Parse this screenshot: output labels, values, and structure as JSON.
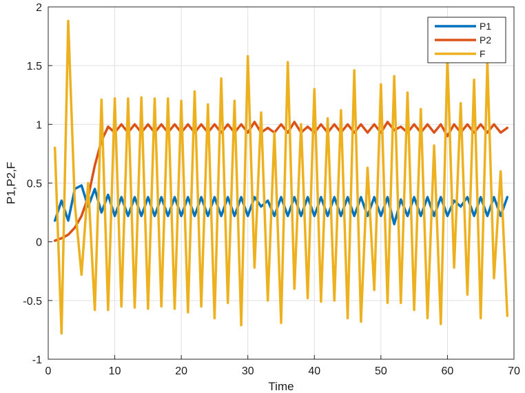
{
  "chart_data": {
    "type": "line",
    "xlabel": "Time",
    "ylabel": "P1,P2,F",
    "xlim": [
      0,
      70
    ],
    "ylim": [
      -1,
      2
    ],
    "xticks": [
      "0",
      "10",
      "20",
      "30",
      "40",
      "50",
      "60",
      "70"
    ],
    "yticks": [
      "-1",
      "-0.5",
      "0",
      "0.5",
      "1",
      "1.5",
      "2"
    ],
    "grid": true,
    "legend_position": "top-right",
    "x": [
      1,
      2,
      3,
      4,
      5,
      6,
      7,
      8,
      9,
      10,
      11,
      12,
      13,
      14,
      15,
      16,
      17,
      18,
      19,
      20,
      21,
      22,
      23,
      24,
      25,
      26,
      27,
      28,
      29,
      30,
      31,
      32,
      33,
      34,
      35,
      36,
      37,
      38,
      39,
      40,
      41,
      42,
      43,
      44,
      45,
      46,
      47,
      48,
      49,
      50,
      51,
      52,
      53,
      54,
      55,
      56,
      57,
      58,
      59,
      60,
      61,
      62,
      63,
      64,
      65,
      66,
      67,
      68,
      69
    ],
    "series": [
      {
        "name": "P1",
        "color": "#0072BD",
        "values": [
          0.18,
          0.35,
          0.18,
          0.45,
          0.48,
          0.3,
          0.45,
          0.25,
          0.4,
          0.22,
          0.38,
          0.22,
          0.38,
          0.22,
          0.38,
          0.22,
          0.38,
          0.22,
          0.38,
          0.22,
          0.38,
          0.22,
          0.38,
          0.22,
          0.38,
          0.22,
          0.38,
          0.22,
          0.38,
          0.22,
          0.38,
          0.3,
          0.35,
          0.22,
          0.38,
          0.22,
          0.38,
          0.22,
          0.38,
          0.22,
          0.38,
          0.22,
          0.38,
          0.22,
          0.38,
          0.22,
          0.38,
          0.22,
          0.38,
          0.22,
          0.38,
          0.15,
          0.36,
          0.22,
          0.38,
          0.22,
          0.38,
          0.22,
          0.38,
          0.22,
          0.35,
          0.3,
          0.38,
          0.22,
          0.38,
          0.22,
          0.38,
          0.22,
          0.38
        ]
      },
      {
        "name": "P2",
        "color": "#D95319",
        "values": [
          0.01,
          0.03,
          0.06,
          0.12,
          0.22,
          0.38,
          0.65,
          0.86,
          0.98,
          0.93,
          1.0,
          0.93,
          1.0,
          0.93,
          1.0,
          0.93,
          1.0,
          0.93,
          1.0,
          0.93,
          1.0,
          0.93,
          1.0,
          0.93,
          1.0,
          0.93,
          1.0,
          0.93,
          1.0,
          0.93,
          1.02,
          0.93,
          0.97,
          0.93,
          1.0,
          0.93,
          1.02,
          0.93,
          0.98,
          0.93,
          1.0,
          0.93,
          1.0,
          0.93,
          1.0,
          0.93,
          1.0,
          0.93,
          1.0,
          0.93,
          1.02,
          0.95,
          0.98,
          0.93,
          1.0,
          0.93,
          1.0,
          0.93,
          1.0,
          0.9,
          1.0,
          0.93,
          1.0,
          0.93,
          1.0,
          0.93,
          1.0,
          0.93,
          0.97
        ]
      },
      {
        "name": "F",
        "color": "#EDB120",
        "values": [
          0.8,
          -0.78,
          1.88,
          0.32,
          -0.28,
          0.5,
          -0.58,
          1.21,
          -0.58,
          1.22,
          -0.55,
          1.22,
          -0.56,
          1.23,
          -0.57,
          1.22,
          -0.55,
          1.22,
          -0.57,
          1.2,
          -0.6,
          1.28,
          -0.55,
          1.17,
          -0.65,
          1.39,
          -0.52,
          1.2,
          -0.71,
          1.58,
          -0.22,
          1.1,
          -0.5,
          0.93,
          -0.69,
          1.53,
          -0.4,
          1.0,
          -0.48,
          1.3,
          -0.51,
          1.05,
          -0.5,
          1.12,
          -0.65,
          1.46,
          -0.68,
          0.63,
          -0.41,
          1.34,
          -0.52,
          1.41,
          -0.52,
          1.27,
          -0.58,
          1.13,
          -0.65,
          0.82,
          -0.7,
          1.56,
          -0.22,
          1.18,
          -0.45,
          1.38,
          -0.65,
          1.53,
          -0.31,
          0.6,
          -0.63
        ]
      }
    ]
  }
}
